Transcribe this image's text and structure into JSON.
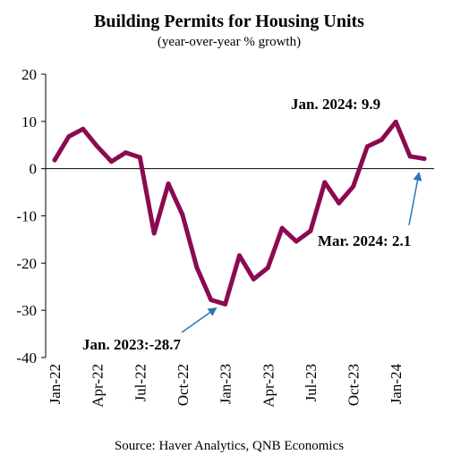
{
  "chart_data": {
    "type": "line",
    "title": "Building Permits for Housing Units",
    "subtitle": "(year-over-year % growth)",
    "source": "Source: Haver Analytics, QNB Economics",
    "ylim": [
      -40,
      20
    ],
    "yticks": [
      20,
      10,
      0,
      -10,
      -20,
      -30,
      -40
    ],
    "xticks": [
      "Jan-22",
      "Apr-22",
      "Jul-22",
      "Oct-22",
      "Jan-23",
      "Apr-23",
      "Jul-23",
      "Oct-23",
      "Jan-24"
    ],
    "x": [
      "Jan-22",
      "Feb-22",
      "Mar-22",
      "Apr-22",
      "May-22",
      "Jun-22",
      "Jul-22",
      "Aug-22",
      "Sep-22",
      "Oct-22",
      "Nov-22",
      "Dec-22",
      "Jan-23",
      "Feb-23",
      "Mar-23",
      "Apr-23",
      "May-23",
      "Jun-23",
      "Jul-23",
      "Aug-23",
      "Sep-23",
      "Oct-23",
      "Nov-23",
      "Dec-23",
      "Jan-24",
      "Feb-24",
      "Mar-24"
    ],
    "series": [
      {
        "color": "#8b0a50",
        "values": [
          1.8,
          6.8,
          8.4,
          4.7,
          1.5,
          3.4,
          2.4,
          -13.7,
          -3.2,
          -9.8,
          -20.9,
          -27.8,
          -28.7,
          -18.4,
          -23.4,
          -21.0,
          -12.6,
          -15.4,
          -13.2,
          -2.9,
          -7.3,
          -3.8,
          4.7,
          6.1,
          9.9,
          2.6,
          2.1
        ]
      }
    ],
    "annotations": [
      {
        "text": "Jan. 2024: 9.9",
        "target": "Jan-24"
      },
      {
        "text": "Mar. 2024: 2.1",
        "target": "Mar-24"
      },
      {
        "text": "Jan. 2023:-28.7",
        "target": "Jan-23"
      }
    ],
    "arrow_color": "#2e75b6",
    "grid": false
  }
}
